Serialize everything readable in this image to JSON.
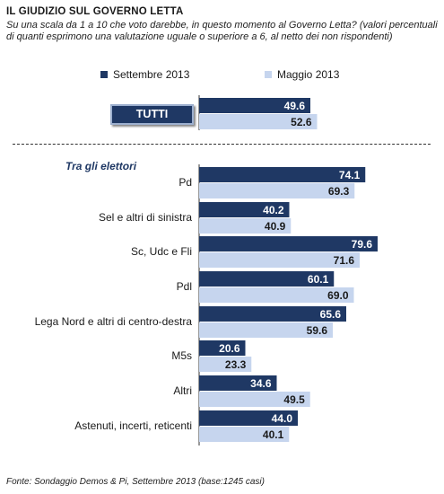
{
  "title": "IL GIUDIZIO  SUL GOVERNO LETTA",
  "subtitle": "Su una scala da 1 a 10 che voto darebbe, in questo momento al Governo Letta? (valori percentuali di quanti esprimono una valutazione uguale o superiore a 6, al netto dei non rispondenti)",
  "source": "Fonte: Sondaggio Demos & Pi, Settembre 2013 (base:1245 casi)",
  "group_header": "Tra gli elettori",
  "colors": {
    "sept": "#1f3864",
    "may": "#c6d5ee",
    "sept_text": "#ffffff",
    "may_text": "#1a1a1a"
  },
  "chart_data": {
    "type": "bar",
    "orientation": "horizontal",
    "categories": [
      "TUTTI",
      "Pd",
      "Sel e altri di sinistra",
      "Sc, Udc e Fli",
      "Pdl",
      "Lega Nord e altri di centro-destra",
      "M5s",
      "Altri",
      "Astenuti, incerti, reticenti"
    ],
    "series": [
      {
        "name": "Settembre 2013",
        "values": [
          49.6,
          74.1,
          40.2,
          79.6,
          60.1,
          65.6,
          20.6,
          34.6,
          44.0
        ],
        "labels": [
          "49.6",
          "74.1",
          "40.2",
          "79.6",
          "60.1",
          "65.6",
          "20.6",
          "34.6",
          "44.0"
        ]
      },
      {
        "name": "Maggio 2013",
        "values": [
          52.6,
          69.3,
          40.9,
          71.6,
          69.0,
          59.6,
          23.3,
          49.5,
          40.1
        ],
        "labels": [
          "52.6",
          "69.3",
          "40.9",
          "71.6",
          "69.0",
          "59.6",
          "23.3",
          "49.5",
          "40.1"
        ]
      }
    ],
    "legend_position": "top",
    "data_labels": "inside-end"
  }
}
